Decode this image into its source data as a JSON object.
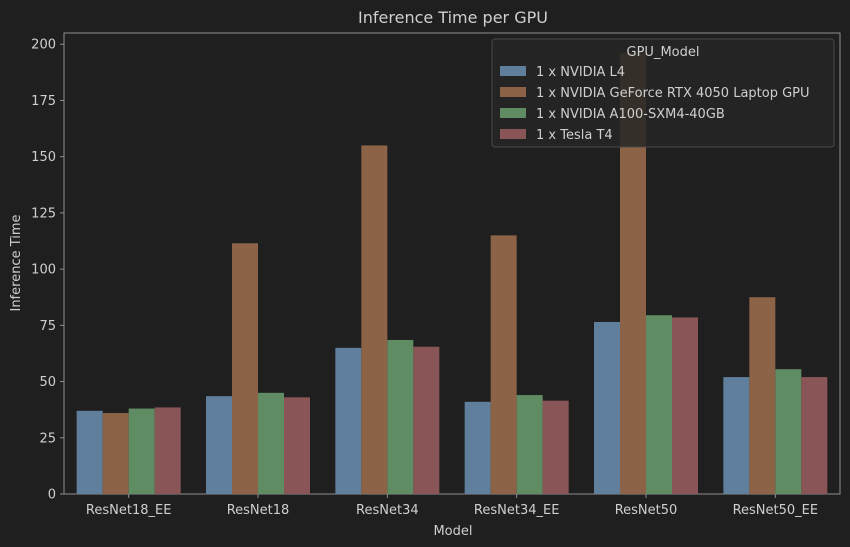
{
  "chart_data": {
    "type": "bar",
    "title": "Inference Time per GPU",
    "xlabel": "Model",
    "ylabel": "Inference Time",
    "categories": [
      "ResNet18_EE",
      "ResNet18",
      "ResNet34",
      "ResNet34_EE",
      "ResNet50",
      "ResNet50_EE"
    ],
    "ylim": [
      0,
      205
    ],
    "yticks": [
      0,
      25,
      50,
      75,
      100,
      125,
      150,
      175,
      200
    ],
    "legend_title": "GPU_Model",
    "legend_position": "top-right",
    "grid": false,
    "series": [
      {
        "name": "1 x NVIDIA L4",
        "color": "#5f7f9c",
        "values": [
          37,
          43.5,
          65,
          41,
          76.5,
          52
        ]
      },
      {
        "name": "1 x NVIDIA GeForce RTX 4050 Laptop GPU",
        "color": "#8c6347",
        "values": [
          36,
          111.5,
          155,
          115,
          196,
          87.5
        ]
      },
      {
        "name": "1 x NVIDIA A100-SXM4-40GB",
        "color": "#5f8c63",
        "values": [
          38,
          45,
          68.5,
          44,
          79.5,
          55.5
        ]
      },
      {
        "name": "1 x Tesla T4",
        "color": "#8a5556",
        "values": [
          38.5,
          43,
          65.5,
          41.5,
          78.5,
          52
        ]
      }
    ]
  }
}
